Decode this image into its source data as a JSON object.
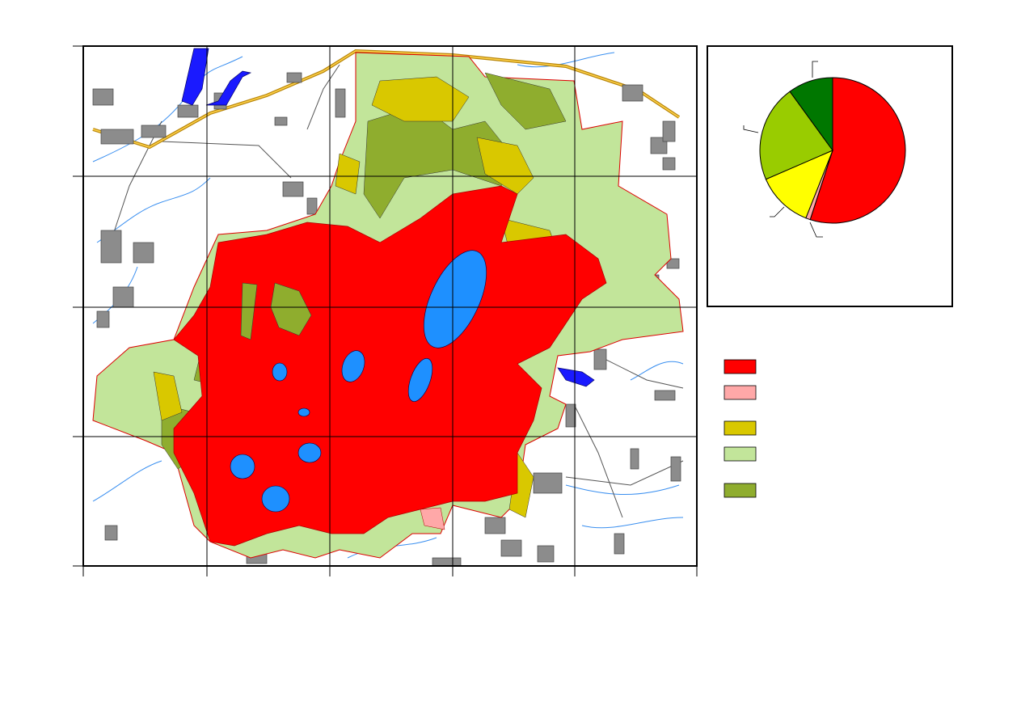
{
  "chart_data": {
    "type": "pie",
    "values": [
      55,
      1,
      12.5,
      21.5,
      10
    ],
    "colors": [
      "#ff0000",
      "#ffa8a8",
      "#ffff00",
      "#99cc00",
      "#007700"
    ]
  },
  "legend": {
    "colors": [
      "#ff0000",
      "#ffa8a8",
      "#d9c800",
      "#c2e59a",
      "#8fad2e"
    ]
  }
}
